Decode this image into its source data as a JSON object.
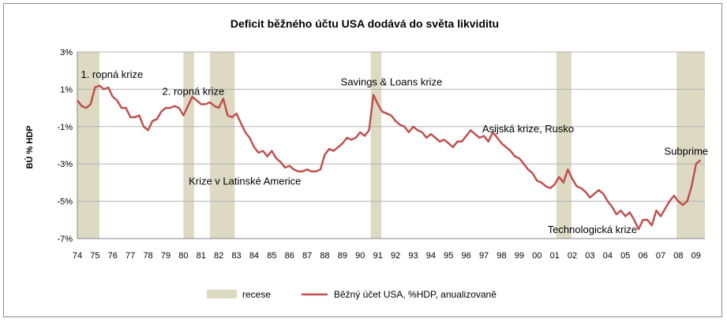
{
  "chart_data": {
    "type": "line",
    "title": "Deficit běžného účtu USA dodává do světa likviditu",
    "ylabel": "BÚ % HDP",
    "xlabel": "",
    "ylim": [
      -7,
      3
    ],
    "xlim": [
      1974,
      2009.5
    ],
    "grid": true,
    "legend_position": "bottom",
    "y_ticks": [
      "3%",
      "1%",
      "-1%",
      "-3%",
      "-5%",
      "-7%"
    ],
    "y_tick_values": [
      3,
      1,
      -1,
      -3,
      -5,
      -7
    ],
    "x_ticks": [
      "74",
      "75",
      "76",
      "77",
      "78",
      "79",
      "80",
      "81",
      "82",
      "83",
      "84",
      "85",
      "86",
      "87",
      "88",
      "89",
      "90",
      "91",
      "92",
      "93",
      "94",
      "95",
      "96",
      "97",
      "98",
      "99",
      "00",
      "01",
      "02",
      "03",
      "04",
      "05",
      "06",
      "07",
      "08",
      "09"
    ],
    "recessions": [
      {
        "start": 1974.0,
        "end": 1975.25
      },
      {
        "start": 1980.0,
        "end": 1980.6
      },
      {
        "start": 1981.5,
        "end": 1982.9
      },
      {
        "start": 1990.6,
        "end": 1991.2
      },
      {
        "start": 2001.1,
        "end": 2001.95
      },
      {
        "start": 2007.9,
        "end": 2009.5
      }
    ],
    "series": [
      {
        "name": "Běžný účet USA, %HDP, anualizovaně",
        "color": "#c0504d",
        "x": [
          1974.0,
          1974.25,
          1974.5,
          1974.75,
          1975.0,
          1975.25,
          1975.5,
          1975.75,
          1976.0,
          1976.25,
          1976.5,
          1976.75,
          1977.0,
          1977.25,
          1977.5,
          1977.75,
          1978.0,
          1978.25,
          1978.5,
          1978.75,
          1979.0,
          1979.25,
          1979.5,
          1979.75,
          1980.0,
          1980.25,
          1980.5,
          1980.75,
          1981.0,
          1981.25,
          1981.5,
          1981.75,
          1982.0,
          1982.25,
          1982.5,
          1982.75,
          1983.0,
          1983.25,
          1983.5,
          1983.75,
          1984.0,
          1984.25,
          1984.5,
          1984.75,
          1985.0,
          1985.25,
          1985.5,
          1985.75,
          1986.0,
          1986.25,
          1986.5,
          1986.75,
          1987.0,
          1987.25,
          1987.5,
          1987.75,
          1988.0,
          1988.25,
          1988.5,
          1988.75,
          1989.0,
          1989.25,
          1989.5,
          1989.75,
          1990.0,
          1990.25,
          1990.5,
          1990.75,
          1991.0,
          1991.25,
          1991.5,
          1991.75,
          1992.0,
          1992.25,
          1992.5,
          1992.75,
          1993.0,
          1993.25,
          1993.5,
          1993.75,
          1994.0,
          1994.25,
          1994.5,
          1994.75,
          1995.0,
          1995.25,
          1995.5,
          1995.75,
          1996.0,
          1996.25,
          1996.5,
          1996.75,
          1997.0,
          1997.25,
          1997.5,
          1997.75,
          1998.0,
          1998.25,
          1998.5,
          1998.75,
          1999.0,
          1999.25,
          1999.5,
          1999.75,
          2000.0,
          2000.25,
          2000.5,
          2000.75,
          2001.0,
          2001.25,
          2001.5,
          2001.75,
          2002.0,
          2002.25,
          2002.5,
          2002.75,
          2003.0,
          2003.25,
          2003.5,
          2003.75,
          2004.0,
          2004.25,
          2004.5,
          2004.75,
          2005.0,
          2005.25,
          2005.5,
          2005.75,
          2006.0,
          2006.25,
          2006.5,
          2006.75,
          2007.0,
          2007.25,
          2007.5,
          2007.75,
          2008.0,
          2008.25,
          2008.5,
          2008.75,
          2009.0,
          2009.25
        ],
        "values": [
          0.4,
          0.1,
          0.0,
          0.2,
          1.1,
          1.2,
          1.0,
          1.1,
          0.6,
          0.4,
          0.0,
          0.0,
          -0.5,
          -0.5,
          -0.4,
          -1.0,
          -1.2,
          -0.7,
          -0.6,
          -0.2,
          0.0,
          0.0,
          0.1,
          0.0,
          -0.4,
          0.1,
          0.6,
          0.4,
          0.2,
          0.2,
          0.3,
          0.1,
          0.0,
          0.5,
          -0.4,
          -0.5,
          -0.3,
          -0.8,
          -1.3,
          -1.6,
          -2.1,
          -2.4,
          -2.3,
          -2.6,
          -2.3,
          -2.7,
          -2.9,
          -3.2,
          -3.1,
          -3.3,
          -3.4,
          -3.4,
          -3.3,
          -3.4,
          -3.4,
          -3.3,
          -2.5,
          -2.2,
          -2.3,
          -2.1,
          -1.9,
          -1.6,
          -1.7,
          -1.6,
          -1.3,
          -1.5,
          -1.2,
          0.7,
          0.2,
          -0.2,
          -0.3,
          -0.4,
          -0.7,
          -0.9,
          -1.0,
          -1.3,
          -1.0,
          -1.2,
          -1.3,
          -1.6,
          -1.4,
          -1.6,
          -1.8,
          -1.7,
          -1.9,
          -2.1,
          -1.8,
          -1.8,
          -1.5,
          -1.2,
          -1.4,
          -1.6,
          -1.5,
          -1.8,
          -1.3,
          -1.6,
          -1.9,
          -2.1,
          -2.3,
          -2.6,
          -2.7,
          -3.0,
          -3.3,
          -3.5,
          -3.9,
          -4.0,
          -4.2,
          -4.3,
          -4.1,
          -3.7,
          -4.0,
          -3.3,
          -3.8,
          -4.2,
          -4.3,
          -4.5,
          -4.8,
          -4.6,
          -4.4,
          -4.6,
          -5.0,
          -5.3,
          -5.7,
          -5.5,
          -5.8,
          -5.6,
          -6.0,
          -6.5,
          -6.0,
          -6.0,
          -6.3,
          -5.5,
          -5.8,
          -5.4,
          -5.0,
          -4.7,
          -5.0,
          -5.2,
          -5.0,
          -4.2,
          -3.0,
          -2.8
        ]
      }
    ],
    "annotations": [
      {
        "text": "1. ropná krize",
        "x": 1974.2,
        "y": 1.6
      },
      {
        "text": "2. ropná krize",
        "x": 1978.8,
        "y": 0.7
      },
      {
        "text": "Krize v Latinské Americe",
        "x": 1980.3,
        "y": -4.1
      },
      {
        "text": "Savings & Loans krize",
        "x": 1988.9,
        "y": 1.2
      },
      {
        "text": "Asijská krize, Rusko",
        "x": 1996.9,
        "y": -1.3
      },
      {
        "text": "Subprime",
        "x": 2007.2,
        "y": -2.5
      },
      {
        "text": "Technologická krize",
        "x": 2000.6,
        "y": -6.7
      }
    ],
    "legend": {
      "recession_label": "recese",
      "recession_color": "#ddd9c3",
      "line_label": "Běžný účet USA, %HDP, anualizovaně"
    }
  }
}
